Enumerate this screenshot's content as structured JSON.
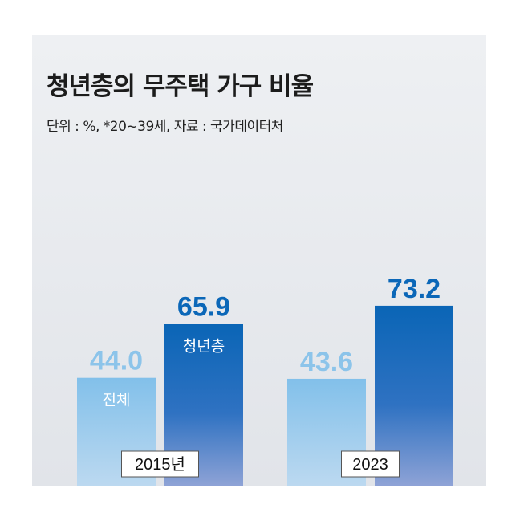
{
  "title": "청년층의 무주택 가구 비율",
  "subtitle": "단위 : %, *20~39세, 자료 : 국가데이터처",
  "chart_data": {
    "type": "bar",
    "title": "청년층의 무주택 가구 비율",
    "subtitle": "단위 : %, *20~39세, 자료 : 국가데이터처",
    "categories": [
      "2015년",
      "2023"
    ],
    "series": [
      {
        "name": "전체",
        "values": [
          44.0,
          43.6
        ],
        "value_labels": [
          "44.0",
          "43.6"
        ],
        "color": "#8cc4ea"
      },
      {
        "name": "청년층",
        "values": [
          65.9,
          73.2
        ],
        "value_labels": [
          "65.9",
          "73.2"
        ],
        "color": "#0b67b8"
      }
    ],
    "grid": false,
    "legend": "in-bar labels"
  }
}
